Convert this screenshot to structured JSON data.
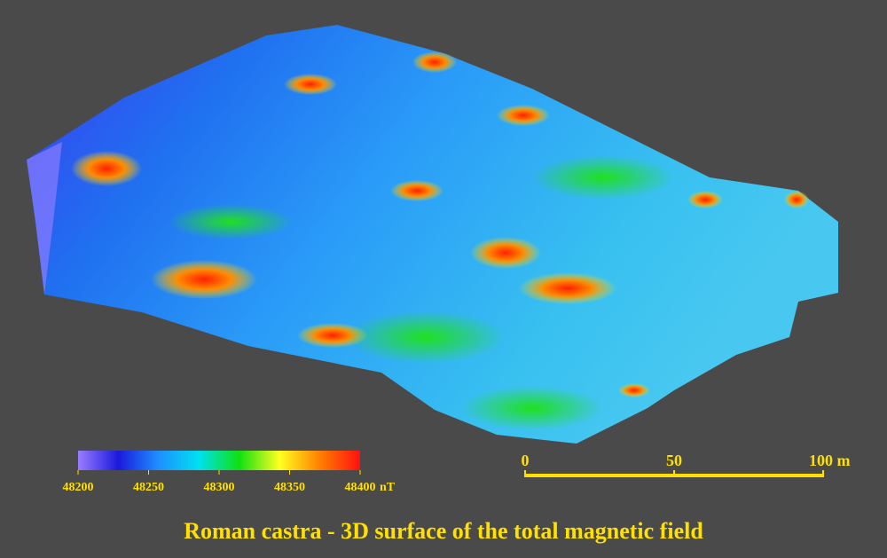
{
  "title": "Roman castra - 3D surface of the total magnetic field",
  "colorbar": {
    "ticks": [
      48200,
      48250,
      48300,
      48350,
      48400
    ],
    "unit": "nT",
    "colors": [
      "#9a7cff",
      "#1a1adc",
      "#1e90ff",
      "#00e0f0",
      "#10e010",
      "#ffff20",
      "#ff8000",
      "#ff1010"
    ]
  },
  "scale_bar": {
    "ticks": [
      0,
      50,
      {
        "value": 100,
        "label": "100 m"
      }
    ],
    "color": "#ffe000"
  }
}
